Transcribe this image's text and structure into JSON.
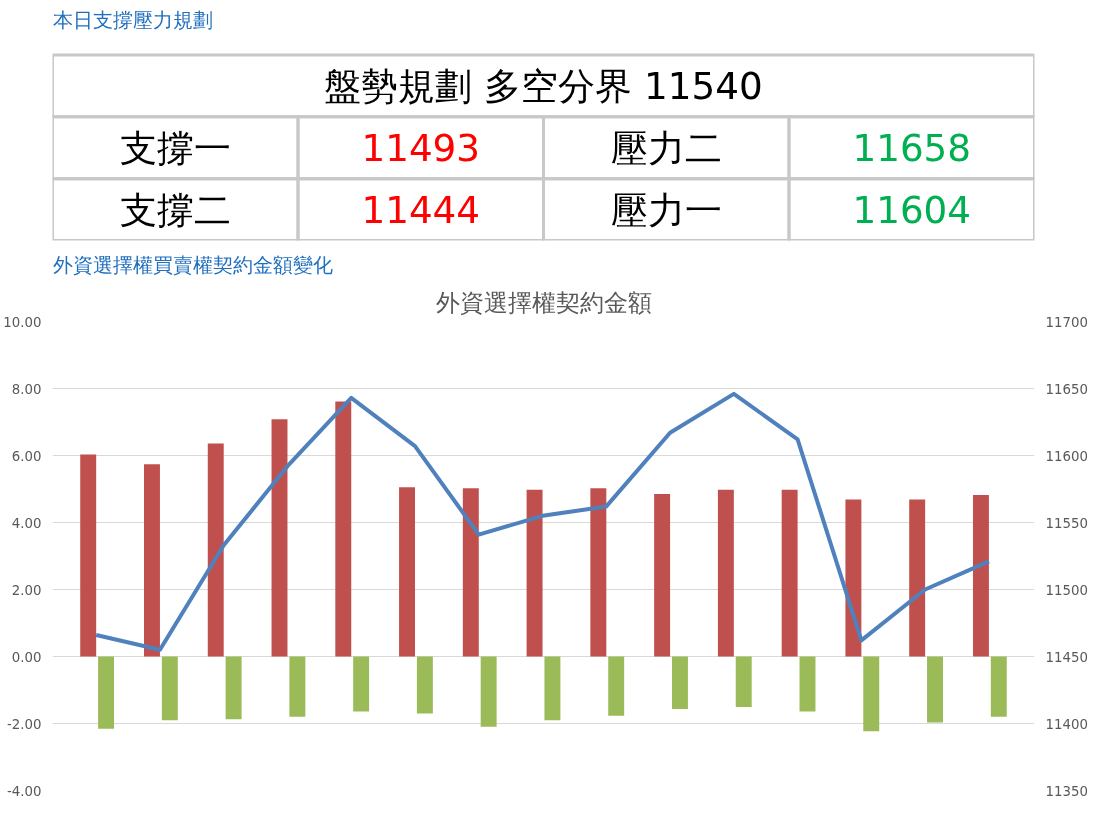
{
  "chart_data": [
    {
      "type": "other",
      "title": "本日支撐壓力規劃",
      "subtitle": "盤勢規劃 多空分界 11540",
      "categories": [
        "支撐一",
        "壓力二",
        "支撐二",
        "壓力一"
      ],
      "values": [
        11493,
        11658,
        11444,
        11604
      ],
      "colors": [
        "#ff0000",
        "#00b050",
        "#ff0000",
        "#00b050"
      ],
      "data_labels": true
    },
    {
      "type": "bar",
      "title": "外資選擇權契約金額",
      "annotations": [
        "外資選擇權買賣權契約金額變化"
      ],
      "categories": [
        null,
        null,
        null,
        null,
        null,
        null,
        null,
        null,
        null,
        null,
        null,
        null,
        null,
        null,
        null
      ],
      "series": [
        {
          "type": "bar",
          "color": "#c0504d",
          "values": [
            6.03,
            5.74,
            6.36,
            7.08,
            7.61,
            5.05,
            5.02,
            4.98,
            5.02,
            4.85,
            4.98,
            4.98,
            4.69,
            4.69,
            4.82
          ]
        },
        {
          "type": "bar",
          "color": "#9bbb59",
          "values": [
            -2.16,
            -1.9,
            -1.87,
            -1.8,
            -1.64,
            -1.7,
            -2.1,
            -1.9,
            -1.77,
            -1.57,
            -1.51,
            -1.64,
            -2.23,
            -1.97,
            -1.8
          ]
        },
        {
          "type": "line",
          "axis": "y2",
          "color": "#4f81bd",
          "values": [
            11466,
            11455,
            11533,
            11592,
            11643,
            11607,
            11541,
            11555,
            11562,
            11617,
            11646,
            11612,
            11462,
            11500,
            11521
          ]
        }
      ],
      "ylim": [
        -4,
        10
      ],
      "yticks": [
        {
          "value": -4,
          "label": "-4.00"
        },
        {
          "value": -2,
          "label": "-2.00"
        },
        {
          "value": 0,
          "label": "0.00"
        },
        {
          "value": 2,
          "label": "2.00"
        },
        {
          "value": 4,
          "label": "4.00"
        },
        {
          "value": 6,
          "label": "6.00"
        },
        {
          "value": 8,
          "label": "8.00"
        },
        {
          "value": 10,
          "label": "10.00"
        }
      ],
      "y2lim": [
        11350,
        11700
      ],
      "y2ticks": [
        11350,
        11400,
        11450,
        11500,
        11550,
        11600,
        11650,
        11700
      ],
      "grid": "y"
    }
  ]
}
